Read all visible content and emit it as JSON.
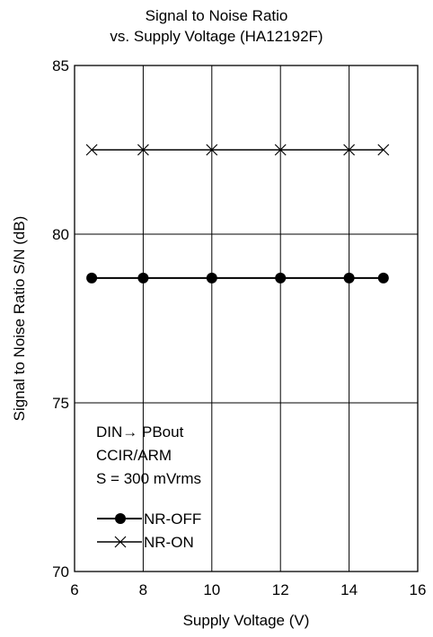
{
  "chart_data": {
    "type": "line",
    "title_lines": [
      "Signal to Noise Ratio",
      "vs. Supply Voltage  (HA12192F)"
    ],
    "xlabel": "Supply Voltage  (V)",
    "ylabel": "Signal to Noise Ratio  S/N  (dB)",
    "xlim": [
      6,
      16
    ],
    "ylim": [
      70,
      85
    ],
    "x_ticks": [
      "6",
      "8",
      "10",
      "12",
      "14",
      "16"
    ],
    "y_ticks": [
      "70",
      "75",
      "80",
      "85"
    ],
    "grid": true,
    "annotations": [
      "DIN→ PBout",
      "CCIR/ARM",
      "S = 300 mVrms"
    ],
    "legend_position": "bottom-left",
    "series": [
      {
        "name": "NR-OFF",
        "marker": "filled-circle",
        "x": [
          6.5,
          8,
          10,
          12,
          14,
          15
        ],
        "y": [
          78.7,
          78.7,
          78.7,
          78.7,
          78.7,
          78.7
        ]
      },
      {
        "name": "NR-ON",
        "marker": "x",
        "x": [
          6.5,
          8,
          10,
          12,
          14,
          15
        ],
        "y": [
          82.5,
          82.5,
          82.5,
          82.5,
          82.5,
          82.5
        ]
      }
    ]
  }
}
